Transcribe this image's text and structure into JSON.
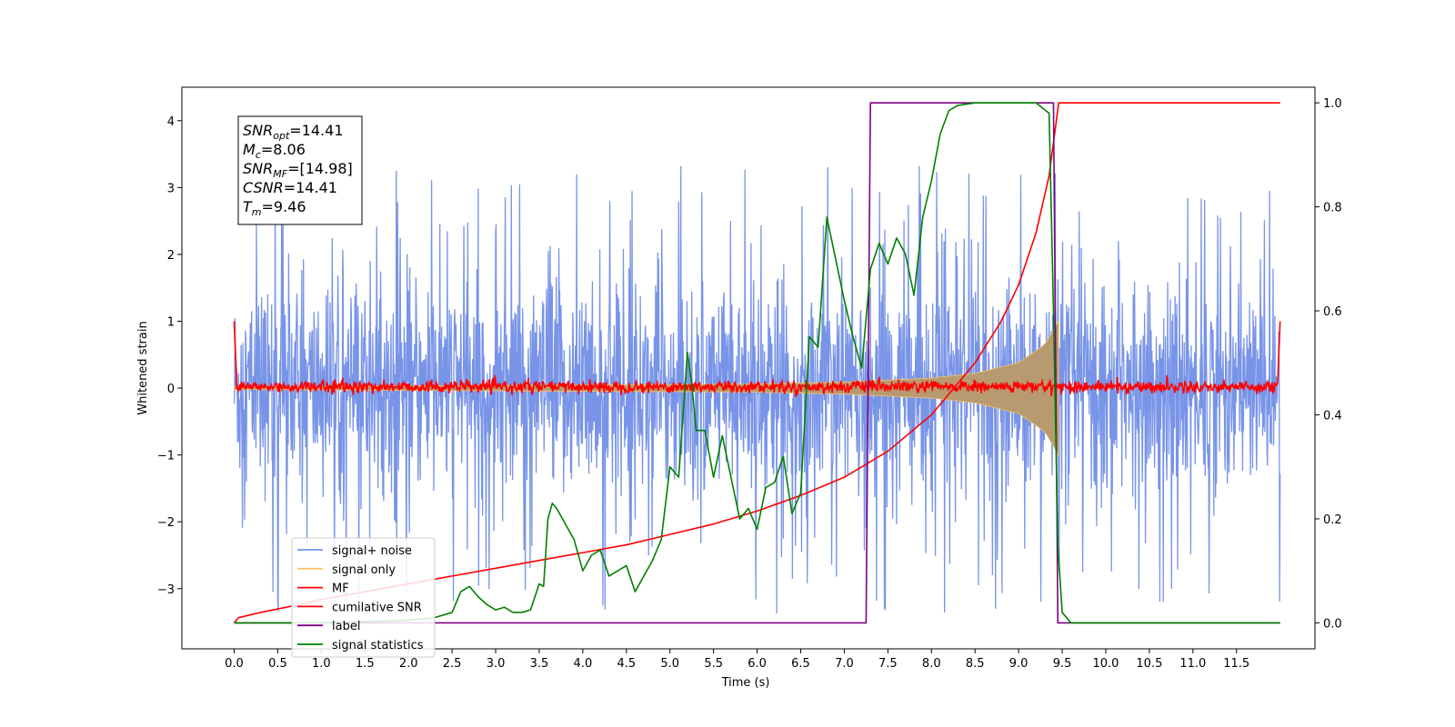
{
  "chart_data": {
    "type": "line",
    "xlabel": "Time (s)",
    "ylabel": "Whitened strain",
    "xlim": [
      -0.6,
      12.4
    ],
    "ylim_left": [
      -3.9,
      4.5
    ],
    "ylim_right": [
      -0.05,
      1.03
    ],
    "x_ticks": [
      0.0,
      0.5,
      1.0,
      1.5,
      2.0,
      2.5,
      3.0,
      3.5,
      4.0,
      4.5,
      5.0,
      5.5,
      6.0,
      6.5,
      7.0,
      7.5,
      8.0,
      8.5,
      9.0,
      9.5,
      10.0,
      10.5,
      11.0,
      11.5
    ],
    "x_tick_labels": [
      "0.0",
      "0.5",
      "1.0",
      "1.5",
      "2.0",
      "2.5",
      "3.0",
      "3.5",
      "4.0",
      "4.5",
      "5.0",
      "5.5",
      "6.0",
      "6.5",
      "7.0",
      "7.5",
      "8.0",
      "8.5",
      "9.0",
      "9.5",
      "10.0",
      "10.5",
      "11.0",
      "11.5"
    ],
    "y_left_ticks": [
      -3,
      -2,
      -1,
      0,
      1,
      2,
      3,
      4
    ],
    "y_left_tick_labels": [
      "−3",
      "−2",
      "−1",
      "0",
      "1",
      "2",
      "3",
      "4"
    ],
    "y_right_ticks": [
      0.0,
      0.2,
      0.4,
      0.6,
      0.8,
      1.0
    ],
    "y_right_tick_labels": [
      "0.0",
      "0.2",
      "0.4",
      "0.6",
      "0.8",
      "1.0"
    ],
    "annotation": {
      "lines": [
        {
          "base": "SNR",
          "sub": "opt",
          "rest": "=14.41"
        },
        {
          "base": "M",
          "sub": "c",
          "rest": "=8.06"
        },
        {
          "base": "SNR",
          "sub": "MF",
          "rest": "=[14.98]"
        },
        {
          "base": "CSNR",
          "sub": "",
          "rest": "=14.41"
        },
        {
          "base": "T",
          "sub": "m",
          "rest": "=9.46"
        }
      ]
    },
    "legend_position": "lower-left",
    "series": [
      {
        "name": "signal+ noise",
        "color": "#7894e8",
        "axis": "left",
        "description_kind": "noise band",
        "t_range": [
          0.0,
          12.0
        ],
        "sigma": 0.75,
        "typical_peak": 2.7
      },
      {
        "name": "signal only",
        "color": "#f4c26b",
        "axis": "left",
        "description_kind": "chirp envelope",
        "t_range": [
          0.0,
          9.46
        ],
        "amplitude_points": [
          [
            0.0,
            0.02
          ],
          [
            6.0,
            0.06
          ],
          [
            7.0,
            0.09
          ],
          [
            8.0,
            0.15
          ],
          [
            8.5,
            0.22
          ],
          [
            9.0,
            0.38
          ],
          [
            9.3,
            0.65
          ],
          [
            9.46,
            1.0
          ]
        ]
      },
      {
        "name": "MF",
        "color": "#ff0000",
        "axis": "left",
        "description_kind": "matched filter output",
        "t_range": [
          0.0,
          12.0
        ],
        "level": 0.05,
        "edge_value": 1.0
      },
      {
        "name": "cumilative SNR",
        "color": "#ff0000",
        "axis": "right",
        "x": [
          0.0,
          0.05,
          0.3,
          0.6,
          1.0,
          1.5,
          2.0,
          2.5,
          3.0,
          3.5,
          4.0,
          4.5,
          5.0,
          5.5,
          6.0,
          6.5,
          7.0,
          7.5,
          8.0,
          8.5,
          8.8,
          9.0,
          9.2,
          9.35,
          9.46,
          12.0
        ],
        "y": [
          0.0,
          0.01,
          0.02,
          0.03,
          0.045,
          0.06,
          0.075,
          0.09,
          0.105,
          0.12,
          0.135,
          0.15,
          0.17,
          0.19,
          0.215,
          0.245,
          0.28,
          0.33,
          0.4,
          0.5,
          0.58,
          0.65,
          0.75,
          0.86,
          1.0,
          1.0
        ]
      },
      {
        "name": "label",
        "color": "#800080",
        "axis": "right",
        "x": [
          0.0,
          7.25,
          7.3,
          9.4,
          9.45,
          12.0
        ],
        "y": [
          0.0,
          0.0,
          1.0,
          1.0,
          0.0,
          0.0
        ]
      },
      {
        "name": "signal statistics",
        "color": "#008000",
        "axis": "right",
        "x": [
          0.0,
          1.0,
          2.0,
          2.3,
          2.5,
          2.6,
          2.7,
          2.8,
          2.9,
          3.0,
          3.1,
          3.2,
          3.3,
          3.4,
          3.5,
          3.55,
          3.6,
          3.65,
          3.7,
          3.8,
          3.9,
          4.0,
          4.1,
          4.2,
          4.3,
          4.4,
          4.5,
          4.6,
          4.7,
          4.8,
          4.9,
          5.0,
          5.1,
          5.2,
          5.25,
          5.3,
          5.4,
          5.5,
          5.6,
          5.7,
          5.8,
          5.9,
          6.0,
          6.1,
          6.2,
          6.3,
          6.4,
          6.5,
          6.6,
          6.7,
          6.8,
          6.9,
          7.0,
          7.1,
          7.2,
          7.3,
          7.4,
          7.5,
          7.6,
          7.7,
          7.8,
          7.9,
          8.0,
          8.1,
          8.2,
          8.3,
          8.5,
          8.8,
          9.0,
          9.2,
          9.35,
          9.4,
          9.45,
          9.5,
          9.6,
          12.0
        ],
        "y": [
          0.0,
          0.0,
          0.005,
          0.01,
          0.02,
          0.06,
          0.07,
          0.05,
          0.035,
          0.025,
          0.03,
          0.02,
          0.02,
          0.025,
          0.075,
          0.07,
          0.2,
          0.23,
          0.22,
          0.19,
          0.16,
          0.1,
          0.13,
          0.14,
          0.09,
          0.1,
          0.11,
          0.06,
          0.09,
          0.12,
          0.16,
          0.3,
          0.28,
          0.52,
          0.46,
          0.37,
          0.37,
          0.28,
          0.36,
          0.28,
          0.2,
          0.22,
          0.18,
          0.26,
          0.27,
          0.32,
          0.21,
          0.25,
          0.55,
          0.53,
          0.78,
          0.7,
          0.62,
          0.55,
          0.49,
          0.68,
          0.73,
          0.69,
          0.74,
          0.71,
          0.63,
          0.78,
          0.85,
          0.94,
          0.985,
          0.995,
          1.0,
          1.0,
          1.0,
          1.0,
          0.98,
          0.6,
          0.15,
          0.02,
          0.0,
          0.0
        ]
      }
    ]
  }
}
